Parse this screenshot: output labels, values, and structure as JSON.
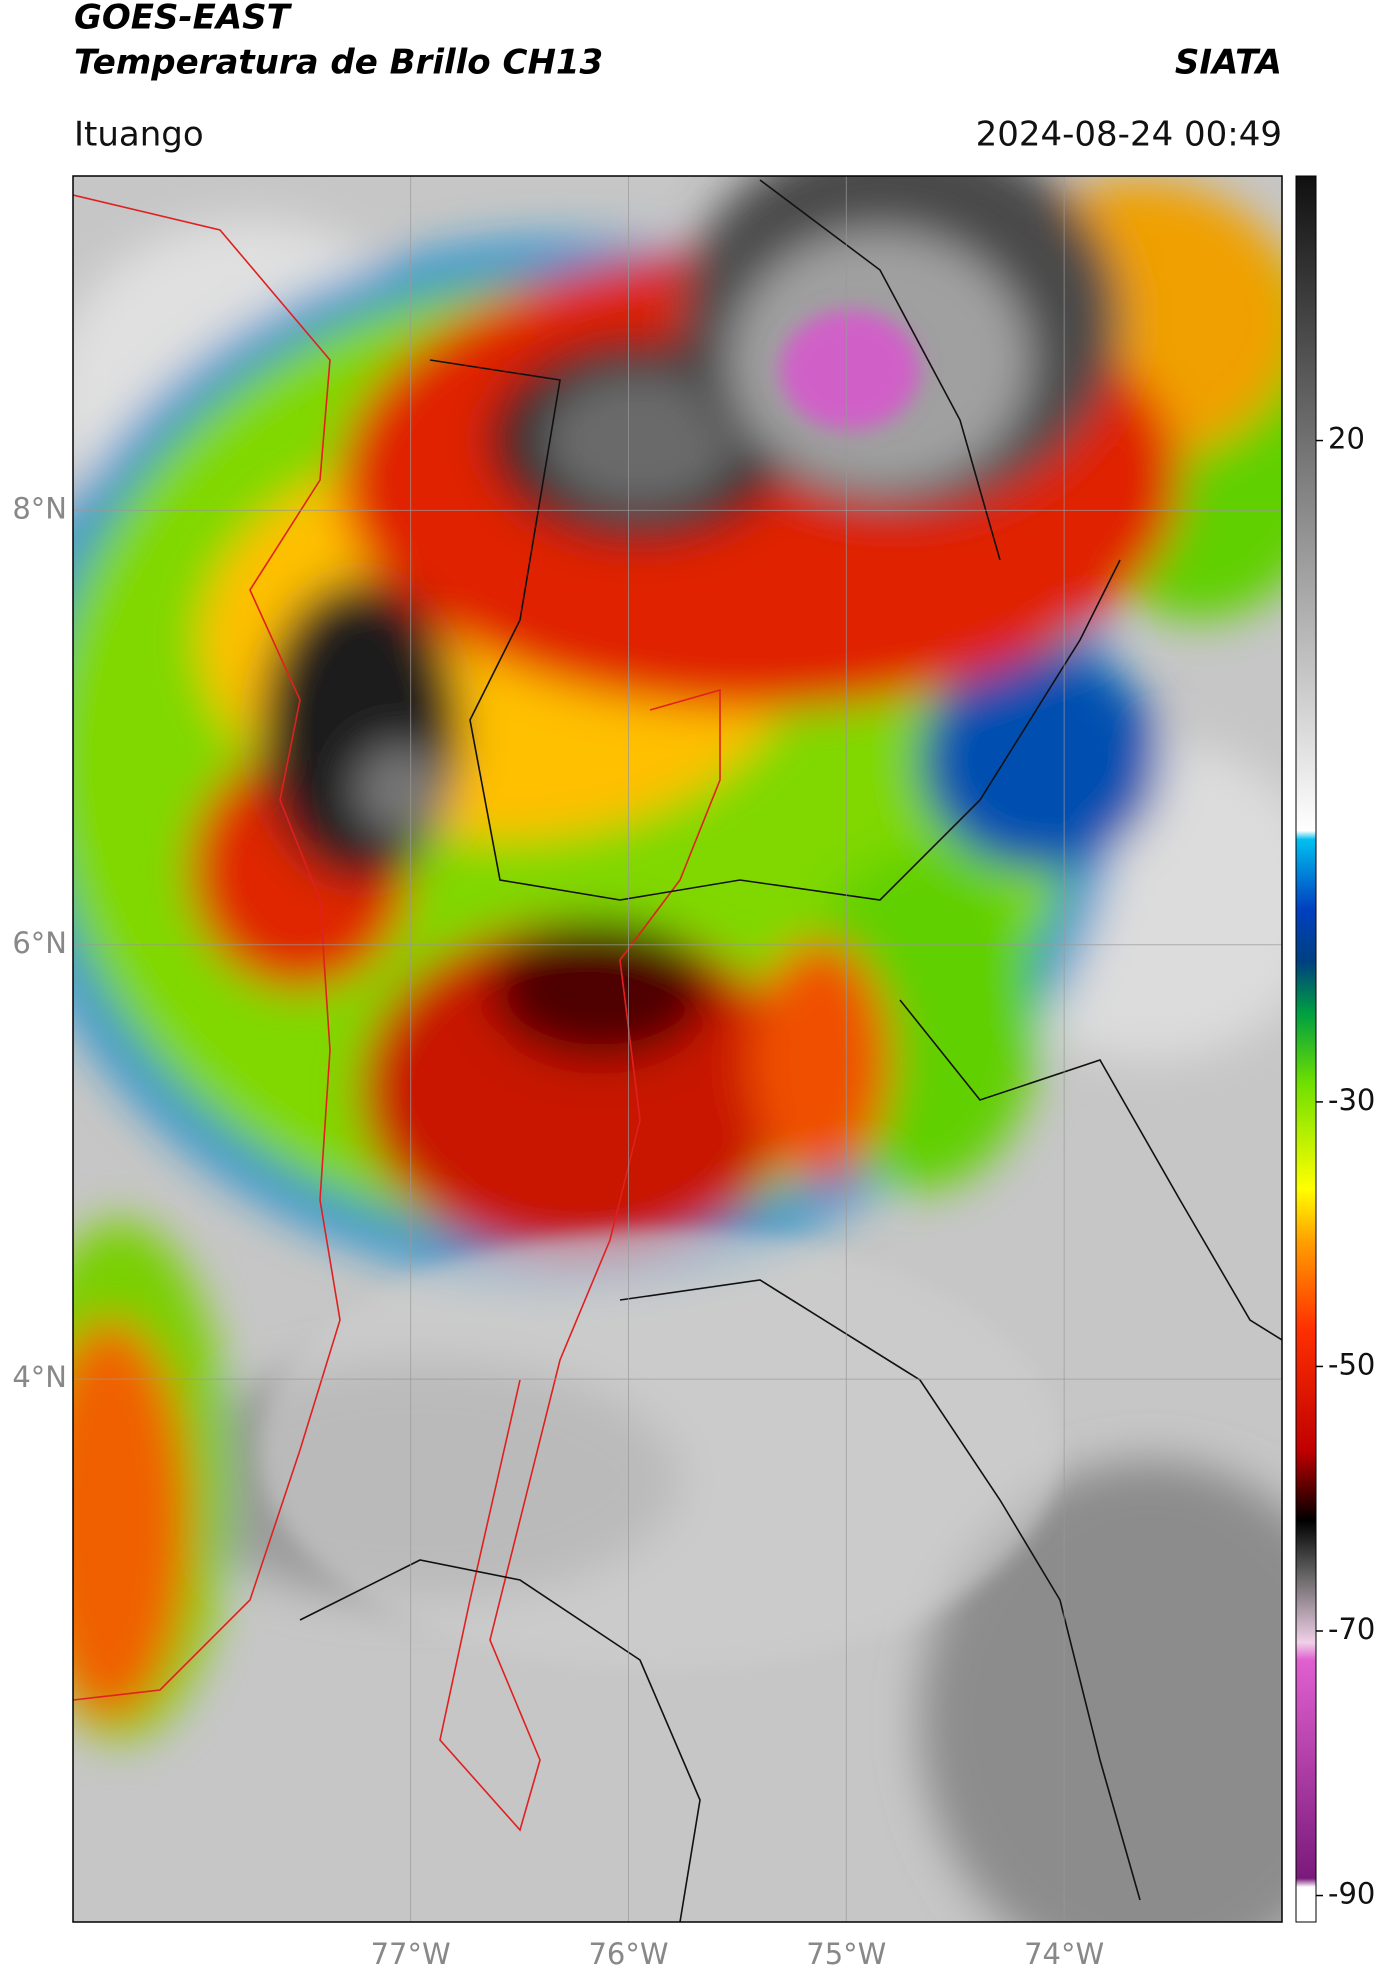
{
  "chart_data": {
    "type": "map",
    "title": "GOES-EAST",
    "subtitle": "Temperatura de Brillo CH13",
    "source": "SIATA",
    "location": "Ituango",
    "datetime": "2024-08-24 00:49",
    "xlim": [
      -78.55,
      -73.0
    ],
    "ylim": [
      1.5,
      9.54
    ],
    "xticks": [
      {
        "value": -77,
        "label": "77°W"
      },
      {
        "value": -76,
        "label": "76°W"
      },
      {
        "value": -75,
        "label": "75°W"
      },
      {
        "value": -74,
        "label": "74°W"
      }
    ],
    "yticks": [
      {
        "value": 8,
        "label": "8°N"
      },
      {
        "value": 6,
        "label": "6°N"
      },
      {
        "value": 4,
        "label": "4°N"
      }
    ],
    "colorbar_lim": [
      -92,
      40
    ],
    "colorbar_ticks": [
      20,
      -30,
      -50,
      -70,
      -90
    ],
    "grid": true
  }
}
